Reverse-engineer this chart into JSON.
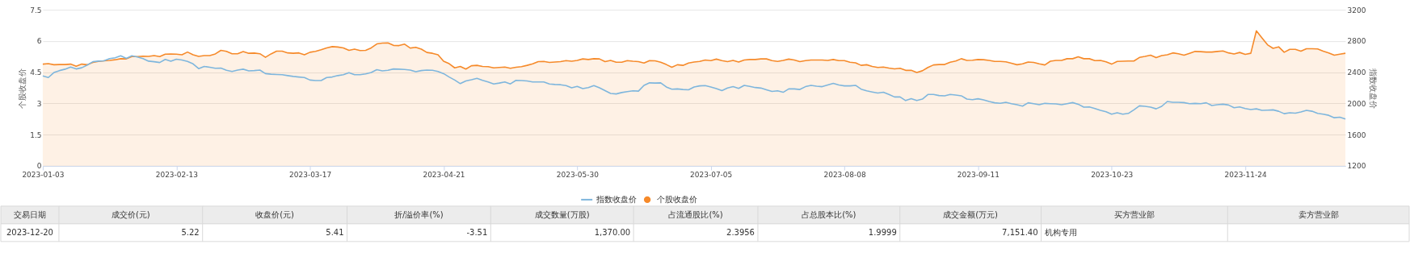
{
  "chart_data": {
    "type": "line",
    "ylabel": "个股收盘价",
    "y2label": "指数收盘价",
    "categories": [
      "2023-01-03",
      null,
      null,
      null,
      null,
      null,
      null,
      null,
      null,
      null,
      null,
      null,
      null,
      null,
      null,
      null,
      null,
      null,
      null,
      null,
      null,
      null,
      null,
      null,
      "2023-02-13",
      null,
      null,
      null,
      null,
      null,
      null,
      null,
      null,
      null,
      null,
      null,
      null,
      null,
      null,
      null,
      null,
      null,
      null,
      null,
      null,
      null,
      null,
      null,
      "2023-03-17",
      null,
      null,
      null,
      null,
      null,
      null,
      null,
      null,
      null,
      null,
      null,
      null,
      null,
      null,
      null,
      null,
      null,
      null,
      null,
      null,
      null,
      null,
      null,
      "2023-04-21",
      null,
      null,
      null,
      null,
      null,
      null,
      null,
      null,
      null,
      null,
      null,
      null,
      null,
      null,
      null,
      null,
      null,
      null,
      null,
      null,
      null,
      null,
      null,
      "2023-05-30",
      null,
      null,
      null,
      null,
      null,
      null,
      null,
      null,
      null,
      null,
      null,
      null,
      null,
      null,
      null,
      null,
      null,
      null,
      null,
      null,
      null,
      null,
      null,
      "2023-07-05",
      null,
      null,
      null,
      null,
      null,
      null,
      null,
      null,
      null,
      null,
      null,
      null,
      null,
      null,
      null,
      null,
      null,
      null,
      null,
      null,
      null,
      null,
      null,
      "2023-08-08",
      null,
      null,
      null,
      null,
      null,
      null,
      null,
      null,
      null,
      null,
      null,
      null,
      null,
      null,
      null,
      null,
      null,
      null,
      null,
      null,
      null,
      null,
      null,
      "2023-09-11",
      null,
      null,
      null,
      null,
      null,
      null,
      null,
      null,
      null,
      null,
      null,
      null,
      null,
      null,
      null,
      null,
      null,
      null,
      null,
      null,
      null,
      null,
      null,
      "2023-10-23",
      null,
      null,
      null,
      null,
      null,
      null,
      null,
      null,
      null,
      null,
      null,
      null,
      null,
      null,
      null,
      null,
      null,
      null,
      null,
      null,
      null,
      null,
      null,
      "2023-11-24",
      null,
      null,
      null,
      null,
      null,
      null,
      null,
      null,
      null,
      null,
      null,
      null,
      null,
      null,
      null,
      null,
      null,
      null
    ],
    "series": [
      {
        "name": "指数收盘价",
        "axis": "y2",
        "color": "#7eb6dd",
        "values": [
          2353,
          2332,
          2396,
          2421,
          2439,
          2467,
          2442,
          2457,
          2492,
          2535,
          2542,
          2546,
          2574,
          2585,
          2610,
          2578,
          2610,
          2596,
          2574,
          2542,
          2535,
          2524,
          2564,
          2542,
          2567,
          2556,
          2539,
          2507,
          2446,
          2474,
          2464,
          2450,
          2453,
          2425,
          2410,
          2428,
          2439,
          2418,
          2421,
          2428,
          2382,
          2375,
          2371,
          2368,
          2357,
          2346,
          2339,
          2332,
          2300,
          2293,
          2293,
          2332,
          2339,
          2357,
          2368,
          2393,
          2368,
          2368,
          2378,
          2396,
          2432,
          2418,
          2425,
          2442,
          2439,
          2435,
          2428,
          2407,
          2421,
          2428,
          2425,
          2410,
          2382,
          2339,
          2300,
          2254,
          2289,
          2304,
          2321,
          2296,
          2275,
          2250,
          2261,
          2275,
          2250,
          2296,
          2293,
          2289,
          2275,
          2275,
          2275,
          2250,
          2243,
          2240,
          2229,
          2200,
          2218,
          2190,
          2204,
          2229,
          2200,
          2165,
          2129,
          2122,
          2140,
          2151,
          2161,
          2158,
          2232,
          2264,
          2261,
          2264,
          2211,
          2183,
          2186,
          2179,
          2175,
          2211,
          2225,
          2229,
          2211,
          2190,
          2165,
          2197,
          2215,
          2193,
          2232,
          2218,
          2204,
          2197,
          2175,
          2154,
          2161,
          2143,
          2186,
          2186,
          2179,
          2215,
          2232,
          2221,
          2215,
          2236,
          2257,
          2236,
          2225,
          2225,
          2232,
          2183,
          2161,
          2147,
          2133,
          2143,
          2115,
          2083,
          2083,
          2037,
          2062,
          2037,
          2055,
          2115,
          2115,
          2101,
          2097,
          2115,
          2108,
          2098,
          2056,
          2049,
          2060,
          2046,
          2025,
          2008,
          2001,
          2015,
          1997,
          1983,
          1966,
          2008,
          1997,
          1983,
          2001,
          1997,
          1994,
          1983,
          1997,
          2011,
          1990,
          1952,
          1955,
          1935,
          1911,
          1893,
          1862,
          1880,
          1862,
          1872,
          1918,
          1970,
          1963,
          1952,
          1931,
          1963,
          2025,
          2015,
          2015,
          2011,
          1997,
          2001,
          1997,
          2008,
          1973,
          1983,
          1990,
          1980,
          1945,
          1956,
          1935,
          1921,
          1931,
          1911,
          1914,
          1918,
          1900,
          1869,
          1880,
          1876,
          1890,
          1911,
          1900,
          1872,
          1862,
          1848,
          1817,
          1824,
          1800
        ]
      },
      {
        "name": "个股收盘价",
        "type": "area",
        "color": "#f68a2a",
        "values": [
          4.89,
          4.91,
          4.86,
          4.87,
          4.87,
          4.89,
          4.79,
          4.89,
          4.86,
          4.97,
          5.02,
          5.05,
          5.07,
          5.1,
          5.15,
          5.14,
          5.25,
          5.25,
          5.27,
          5.26,
          5.3,
          5.25,
          5.37,
          5.38,
          5.37,
          5.34,
          5.47,
          5.34,
          5.26,
          5.3,
          5.3,
          5.38,
          5.55,
          5.5,
          5.39,
          5.39,
          5.49,
          5.41,
          5.42,
          5.39,
          5.22,
          5.38,
          5.51,
          5.51,
          5.43,
          5.41,
          5.43,
          5.34,
          5.46,
          5.5,
          5.58,
          5.67,
          5.73,
          5.71,
          5.67,
          5.55,
          5.61,
          5.54,
          5.55,
          5.67,
          5.86,
          5.9,
          5.91,
          5.79,
          5.78,
          5.85,
          5.66,
          5.7,
          5.61,
          5.45,
          5.41,
          5.34,
          5.03,
          4.91,
          4.71,
          4.78,
          4.65,
          4.81,
          4.83,
          4.78,
          4.77,
          4.71,
          4.73,
          4.75,
          4.69,
          4.74,
          4.77,
          4.83,
          4.9,
          5.01,
          5.02,
          4.97,
          4.99,
          5.01,
          5.06,
          5.03,
          5.07,
          5.14,
          5.11,
          5.15,
          5.14,
          5.01,
          5.07,
          4.98,
          4.98,
          5.06,
          5.03,
          5.01,
          4.94,
          5.06,
          5.05,
          4.98,
          4.87,
          4.74,
          4.86,
          4.83,
          4.94,
          4.99,
          5.02,
          5.09,
          5.06,
          5.13,
          5.06,
          5.01,
          5.07,
          4.99,
          5.09,
          5.11,
          5.11,
          5.14,
          5.14,
          5.06,
          5.02,
          5.07,
          5.13,
          5.09,
          5.01,
          5.06,
          5.09,
          5.09,
          5.09,
          5.07,
          5.11,
          5.06,
          5.06,
          4.98,
          4.95,
          4.83,
          4.86,
          4.78,
          4.73,
          4.75,
          4.7,
          4.66,
          4.69,
          4.59,
          4.59,
          4.49,
          4.57,
          4.73,
          4.85,
          4.87,
          4.87,
          4.98,
          5.04,
          5.15,
          5.07,
          5.08,
          5.11,
          5.1,
          5.07,
          5.02,
          5.02,
          5.0,
          4.93,
          4.86,
          4.9,
          4.99,
          4.97,
          4.9,
          4.85,
          5.03,
          5.07,
          5.07,
          5.15,
          5.15,
          5.24,
          5.15,
          5.15,
          5.06,
          5.07,
          5.0,
          4.89,
          5.02,
          5.03,
          5.04,
          5.04,
          5.21,
          5.26,
          5.32,
          5.2,
          5.3,
          5.34,
          5.43,
          5.39,
          5.32,
          5.41,
          5.5,
          5.49,
          5.47,
          5.47,
          5.5,
          5.52,
          5.43,
          5.38,
          5.45,
          5.36,
          5.41,
          6.49,
          6.15,
          5.82,
          5.65,
          5.72,
          5.46,
          5.6,
          5.6,
          5.51,
          5.63,
          5.63,
          5.62,
          5.51,
          5.43,
          5.32,
          5.37,
          5.41
        ]
      }
    ],
    "ylim": [
      0,
      7.5
    ],
    "yticks": [
      0,
      1.5,
      3,
      4.5,
      6,
      7.5
    ],
    "y2lim": [
      1200,
      3200
    ],
    "y2ticks": [
      1200,
      1600,
      2000,
      2400,
      2800,
      3200
    ],
    "grid": "y",
    "legend": "bottom",
    "annotations": [
      "交易日期",
      "成交价(元)",
      "收盘价(元)",
      "折/溢价率(%)",
      "成交数量(万股)",
      "占流通股比(%)",
      "占总股本比(%)",
      "成交金额(万元)",
      "买方营业部",
      "卖方营业部",
      "2023-12-20",
      "5.22",
      "5.41",
      "-3.51",
      "1,370.00",
      "2.3956",
      "1.9999",
      "7,151.40",
      "机构专用"
    ]
  }
}
